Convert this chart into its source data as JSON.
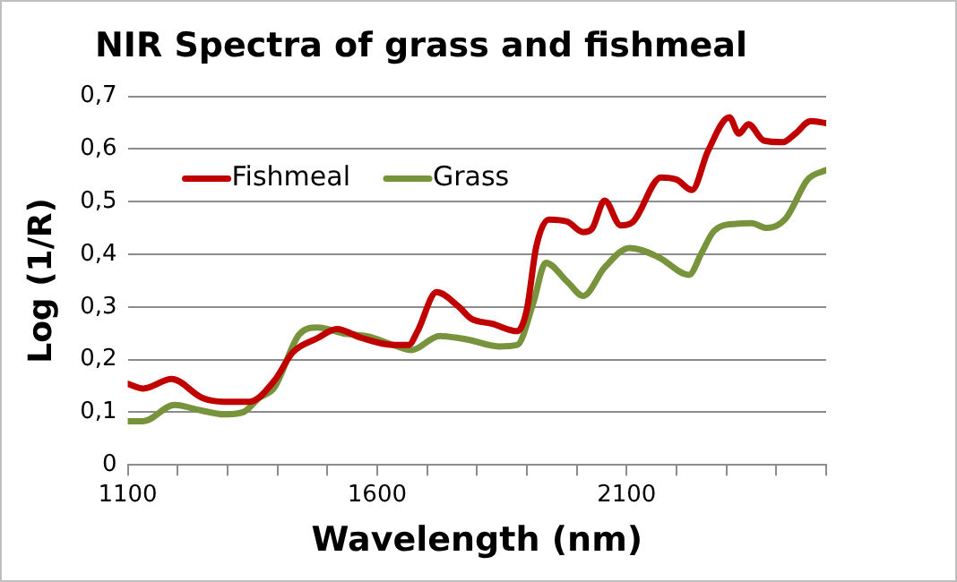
{
  "chart_data": {
    "type": "line",
    "title": "NIR Spectra of grass and fishmeal",
    "xlabel": "Wavelength (nm)",
    "ylabel": "Log (1/R)",
    "xlim": [
      1100,
      2500
    ],
    "xticks": [
      1100,
      {
        "value": 1200,
        "label": null
      },
      {
        "value": 1300,
        "label": null
      },
      {
        "value": 1400,
        "label": null
      },
      {
        "value": 1500,
        "label": null
      },
      1600,
      {
        "value": 1700,
        "label": null
      },
      {
        "value": 1800,
        "label": null
      },
      {
        "value": 1900,
        "label": null
      },
      {
        "value": 2000,
        "label": null
      },
      2100,
      {
        "value": 2200,
        "label": null
      },
      {
        "value": 2300,
        "label": null
      },
      {
        "value": 2400,
        "label": null
      },
      {
        "value": 2500,
        "label": null
      }
    ],
    "ylim": [
      0,
      0.7
    ],
    "yticks": [
      0,
      {
        "value": 0.1,
        "label": "0,1"
      },
      {
        "value": 0.2,
        "label": "0,2"
      },
      {
        "value": 0.3,
        "label": "0,3"
      },
      {
        "value": 0.4,
        "label": "0,4"
      },
      {
        "value": 0.5,
        "label": "0,5"
      },
      {
        "value": 0.6,
        "label": "0,6"
      },
      {
        "value": 0.7,
        "label": "0,7"
      }
    ],
    "grid": "y",
    "legend": "top left",
    "marker": "none",
    "line_style": "solid",
    "series": [
      {
        "name": "Fishmeal",
        "color": "#c00000",
        "x": [
          1100,
          1131,
          1188,
          1250,
          1294,
          1344,
          1394,
          1431,
          1481,
          1519,
          1569,
          1631,
          1663,
          1681,
          1719,
          1763,
          1788,
          1831,
          1881,
          1900,
          1919,
          1944,
          1981,
          2013,
          2031,
          2056,
          2088,
          2113,
          2169,
          2200,
          2231,
          2263,
          2306,
          2325,
          2344,
          2375,
          2413,
          2438,
          2469,
          2500
        ],
        "values": [
          0.154,
          0.145,
          0.163,
          0.127,
          0.12,
          0.12,
          0.16,
          0.214,
          0.241,
          0.258,
          0.241,
          0.228,
          0.228,
          0.254,
          0.328,
          0.301,
          0.278,
          0.268,
          0.254,
          0.295,
          0.415,
          0.466,
          0.462,
          0.442,
          0.449,
          0.502,
          0.455,
          0.462,
          0.546,
          0.542,
          0.522,
          0.596,
          0.66,
          0.629,
          0.647,
          0.616,
          0.613,
          0.629,
          0.653,
          0.649
        ]
      },
      {
        "name": "Grass",
        "color": "#77933c",
        "x": [
          1100,
          1131,
          1194,
          1244,
          1294,
          1331,
          1363,
          1394,
          1444,
          1481,
          1531,
          1581,
          1631,
          1669,
          1725,
          1781,
          1844,
          1881,
          1913,
          1938,
          1981,
          2013,
          2056,
          2106,
          2163,
          2225,
          2250,
          2275,
          2319,
          2350,
          2381,
          2419,
          2463,
          2500
        ],
        "values": [
          0.083,
          0.083,
          0.114,
          0.104,
          0.096,
          0.1,
          0.127,
          0.147,
          0.248,
          0.261,
          0.25,
          0.244,
          0.228,
          0.218,
          0.245,
          0.238,
          0.225,
          0.228,
          0.308,
          0.384,
          0.348,
          0.321,
          0.375,
          0.412,
          0.395,
          0.361,
          0.402,
          0.444,
          0.458,
          0.459,
          0.45,
          0.468,
          0.542,
          0.56
        ]
      }
    ]
  }
}
